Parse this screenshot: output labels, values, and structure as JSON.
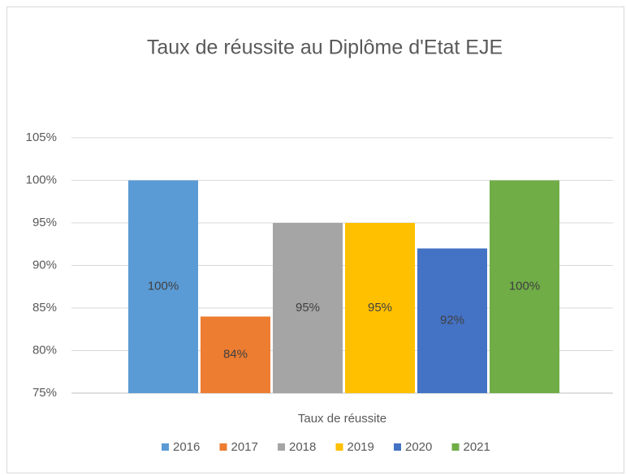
{
  "chart_data": {
    "type": "bar",
    "title": "Taux de réussite au Diplôme d'Etat EJE",
    "categories": [
      "Taux de réussite"
    ],
    "series": [
      {
        "name": "2016",
        "color": "#5b9bd5",
        "values": [
          100
        ],
        "value_labels": [
          "100%"
        ]
      },
      {
        "name": "2017",
        "color": "#ed7d31",
        "values": [
          84
        ],
        "value_labels": [
          "84%"
        ]
      },
      {
        "name": "2018",
        "color": "#a5a5a5",
        "values": [
          95
        ],
        "value_labels": [
          "95%"
        ]
      },
      {
        "name": "2019",
        "color": "#ffc000",
        "values": [
          95
        ],
        "value_labels": [
          "95%"
        ]
      },
      {
        "name": "2020",
        "color": "#4472c4",
        "values": [
          92
        ],
        "value_labels": [
          "92%"
        ]
      },
      {
        "name": "2021",
        "color": "#70ad47",
        "values": [
          100
        ],
        "value_labels": [
          "100%"
        ]
      }
    ],
    "ylim": [
      75,
      105
    ],
    "yticks": [
      {
        "value": 75,
        "label": "75%"
      },
      {
        "value": 80,
        "label": "80%"
      },
      {
        "value": 85,
        "label": "85%"
      },
      {
        "value": 90,
        "label": "90%"
      },
      {
        "value": 95,
        "label": "95%"
      },
      {
        "value": 100,
        "label": "100%"
      },
      {
        "value": 105,
        "label": "105%"
      }
    ],
    "grid": true,
    "legend": "bottom"
  }
}
